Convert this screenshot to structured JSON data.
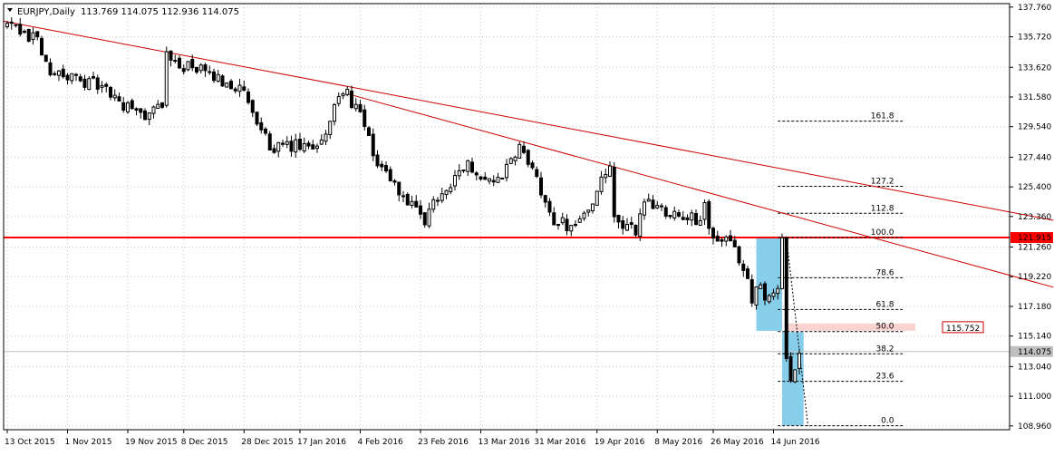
{
  "chart_data": {
    "type": "candlestick",
    "header": {
      "symbol": "EURJPY,Daily",
      "ohlc": "113.769 114.075 112.936 114.075"
    },
    "y_axis": {
      "range": [
        108.7,
        138.0
      ],
      "ticks": [
        "137.760",
        "135.720",
        "133.620",
        "131.580",
        "129.540",
        "127.440",
        "125.400",
        "123.360",
        "121.260",
        "119.220",
        "117.180",
        "115.140",
        "113.040",
        "111.000",
        "108.960"
      ]
    },
    "x_axis": {
      "ticks": [
        {
          "i": 0,
          "label": "13 Oct 2015"
        },
        {
          "i": 14,
          "label": "1 Nov 2015"
        },
        {
          "i": 28,
          "label": "19 Nov 2015"
        },
        {
          "i": 41,
          "label": "8 Dec 2015"
        },
        {
          "i": 55,
          "label": "28 Dec 2015"
        },
        {
          "i": 68,
          "label": "17 Jan 2016"
        },
        {
          "i": 82,
          "label": "4 Feb 2016"
        },
        {
          "i": 96,
          "label": "23 Feb 2016"
        },
        {
          "i": 110,
          "label": "13 Mar 2016"
        },
        {
          "i": 123,
          "label": "31 Mar 2016"
        },
        {
          "i": 137,
          "label": "19 Apr 2016"
        },
        {
          "i": 151,
          "label": "8 May 2016"
        },
        {
          "i": 164,
          "label": "26 May 2016"
        },
        {
          "i": 178,
          "label": "14 Jun 2016"
        }
      ]
    },
    "price_path": [
      [
        0,
        136.5
      ],
      [
        3,
        136.0
      ],
      [
        5,
        135.5
      ],
      [
        7,
        136.1
      ],
      [
        8,
        134.2
      ],
      [
        10,
        133.5
      ],
      [
        13,
        133.0
      ],
      [
        16,
        132.8
      ],
      [
        20,
        132.5
      ],
      [
        23,
        132.0
      ],
      [
        26,
        131.2
      ],
      [
        29,
        130.6
      ],
      [
        33,
        130.3
      ],
      [
        36,
        131.3
      ],
      [
        37,
        134.3
      ],
      [
        40,
        133.8
      ],
      [
        44,
        133.5
      ],
      [
        48,
        132.9
      ],
      [
        52,
        132.5
      ],
      [
        55,
        131.8
      ],
      [
        58,
        129.6
      ],
      [
        61,
        128.3
      ],
      [
        64,
        128.0
      ],
      [
        67,
        128.2
      ],
      [
        70,
        127.9
      ],
      [
        73,
        128.7
      ],
      [
        75,
        130.0
      ],
      [
        77,
        131.6
      ],
      [
        79,
        131.7
      ],
      [
        81,
        130.9
      ],
      [
        83,
        129.5
      ],
      [
        85,
        127.5
      ],
      [
        87,
        126.8
      ],
      [
        90,
        125.5
      ],
      [
        93,
        124.3
      ],
      [
        95,
        123.6
      ],
      [
        97,
        122.8
      ],
      [
        99,
        124.5
      ],
      [
        102,
        125.2
      ],
      [
        105,
        126.7
      ],
      [
        108,
        126.8
      ],
      [
        111,
        126.0
      ],
      [
        114,
        125.8
      ],
      [
        117,
        127.1
      ],
      [
        119,
        128.0
      ],
      [
        121,
        127.3
      ],
      [
        123,
        125.8
      ],
      [
        125,
        124.0
      ],
      [
        127,
        123.2
      ],
      [
        130,
        122.8
      ],
      [
        133,
        123.1
      ],
      [
        136,
        124.5
      ],
      [
        138,
        125.7
      ],
      [
        140,
        126.5
      ],
      [
        141,
        123.4
      ],
      [
        143,
        122.5
      ],
      [
        146,
        122.4
      ],
      [
        148,
        124.5
      ],
      [
        151,
        124.1
      ],
      [
        154,
        123.7
      ],
      [
        157,
        123.5
      ],
      [
        160,
        123.0
      ],
      [
        162,
        123.9
      ],
      [
        163,
        122.5
      ],
      [
        165,
        121.5
      ],
      [
        167,
        121.7
      ],
      [
        168,
        121.3
      ],
      [
        170,
        120.5
      ],
      [
        172,
        119.0
      ],
      [
        173,
        117.8
      ],
      [
        175,
        118.6
      ],
      [
        176,
        117.4
      ],
      [
        178,
        118.2
      ],
      [
        179,
        118.6
      ],
      [
        180,
        122.0
      ],
      [
        181,
        113.6
      ],
      [
        182,
        112.3
      ],
      [
        183,
        113.2
      ],
      [
        184,
        114.0
      ]
    ],
    "horizontal_levels": [
      {
        "price": 121.915,
        "label": "121.915",
        "color": "#ff0000",
        "style": "solid"
      },
      {
        "price": 114.075,
        "label": "114.075",
        "color": "#c0c0c0",
        "style": "solid"
      }
    ],
    "trendlines": [
      {
        "from": {
          "i": -1,
          "price": 136.8
        },
        "to": {
          "i": 243,
          "price": 123.1
        },
        "color": "#cc0000"
      },
      {
        "from": {
          "i": 79,
          "price": 131.8
        },
        "to": {
          "i": 243,
          "price": 118.5
        },
        "color": "#cc0000"
      }
    ],
    "fibonacci": {
      "i_start": 179,
      "i_end": 208,
      "i_label": 206,
      "levels": [
        {
          "label": "161.8",
          "price": 129.92
        },
        {
          "label": "127.2",
          "price": 125.44
        },
        {
          "label": "112.8",
          "price": 123.58
        },
        {
          "label": "100.0",
          "price": 121.92
        },
        {
          "label": "78.6",
          "price": 119.15
        },
        {
          "label": "61.8",
          "price": 116.97
        },
        {
          "label": "50.0",
          "price": 115.45
        },
        {
          "label": "38.2",
          "price": 113.92
        },
        {
          "label": "23.6",
          "price": 112.03
        },
        {
          "label": "0.0",
          "price": 108.97
        }
      ]
    },
    "rectangles": [
      {
        "i0": 174,
        "i1": 180,
        "p0": 121.9,
        "p1": 115.5,
        "color": "#87ceeb"
      },
      {
        "i0": 180,
        "i1": 185,
        "p0": 115.4,
        "p1": 109.0,
        "color": "#87ceeb"
      }
    ],
    "price_marker": {
      "price": 115.752,
      "label": "115.752",
      "i_start": 181,
      "i_end": 211,
      "color": "#f4b6b4"
    },
    "colors": {
      "bull": "#ffffff",
      "bear": "#000000",
      "wick": "#000000",
      "grid": "#c8c8c8",
      "trend": "#cc0000",
      "level": "#ff0000",
      "fib": "#000000"
    }
  }
}
